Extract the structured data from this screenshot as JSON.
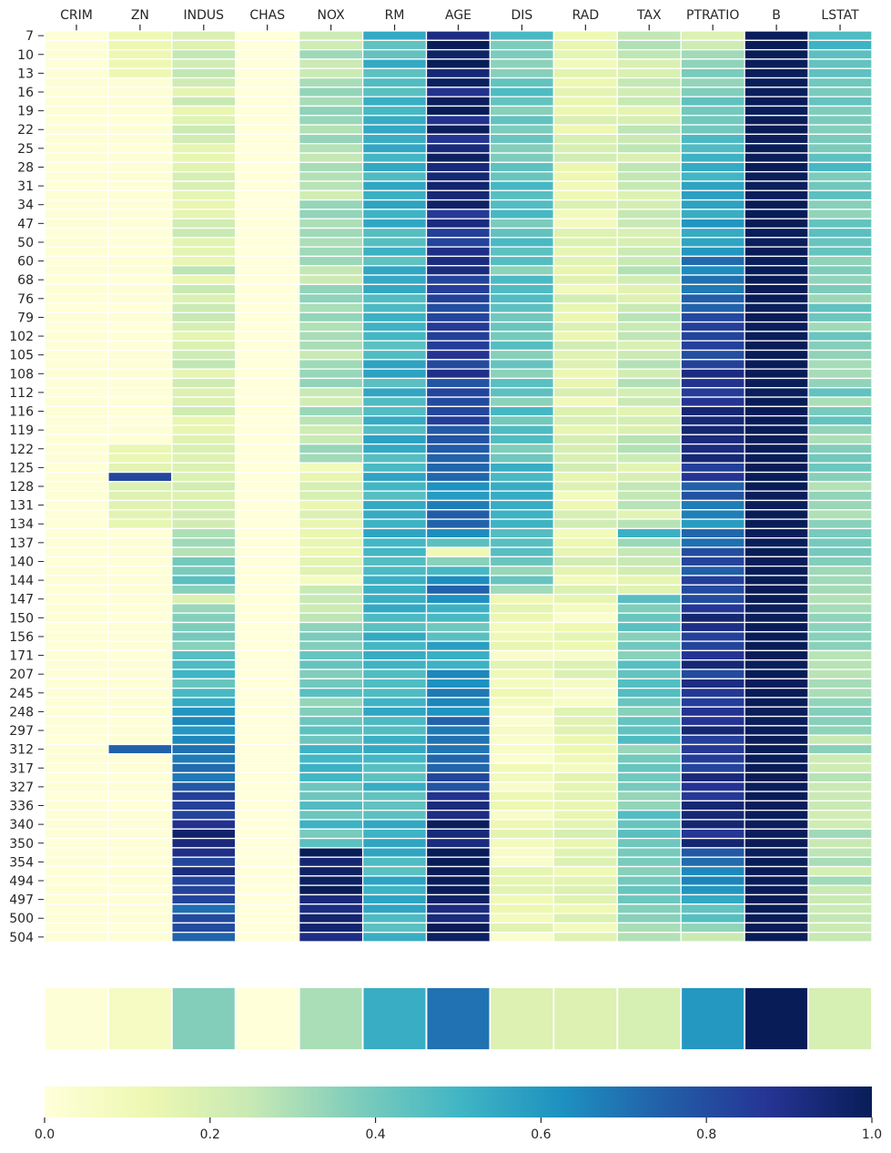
{
  "chart_data": {
    "type": "heatmap",
    "title": "",
    "columns": [
      "CRIM",
      "ZN",
      "INDUS",
      "CHAS",
      "NOX",
      "RM",
      "AGE",
      "DIS",
      "RAD",
      "TAX",
      "PTRATIO",
      "B",
      "LSTAT"
    ],
    "row_tick_labels": [
      "7",
      "10",
      "13",
      "16",
      "19",
      "22",
      "25",
      "28",
      "31",
      "34",
      "47",
      "50",
      "60",
      "68",
      "76",
      "79",
      "102",
      "105",
      "108",
      "112",
      "116",
      "119",
      "122",
      "125",
      "128",
      "131",
      "134",
      "137",
      "140",
      "144",
      "147",
      "150",
      "156",
      "171",
      "207",
      "245",
      "248",
      "297",
      "312",
      "317",
      "327",
      "336",
      "340",
      "350",
      "354",
      "494",
      "497",
      "500",
      "504"
    ],
    "row_count": 97,
    "column_profiles": [
      {
        "name": "CRIM",
        "anchors": [
          [
            0,
            0.01
          ],
          [
            96,
            0.01
          ]
        ]
      },
      {
        "name": "ZN",
        "anchors": [
          [
            0,
            0.12
          ],
          [
            4,
            0.12
          ],
          [
            5,
            0.01
          ],
          [
            43,
            0.01
          ],
          [
            44,
            0.13
          ],
          [
            46,
            0.15
          ],
          [
            47,
            0.82
          ],
          [
            48,
            0.18
          ],
          [
            52,
            0.15
          ],
          [
            53,
            0.01
          ],
          [
            69,
            0.01
          ],
          [
            70,
            0.01
          ],
          [
            72,
            0.01
          ],
          [
            73,
            0.01
          ],
          [
            75,
            0.01
          ],
          [
            76,
            0.75
          ],
          [
            77,
            0.01
          ],
          [
            88,
            0.01
          ],
          [
            89,
            0.01
          ],
          [
            90,
            0.01
          ],
          [
            91,
            0.01
          ],
          [
            92,
            0.01
          ],
          [
            93,
            0.01
          ],
          [
            95,
            0.01
          ],
          [
            96,
            0.01
          ]
        ]
      },
      {
        "name": "INDUS",
        "anchors": [
          [
            0,
            0.2
          ],
          [
            45,
            0.2
          ],
          [
            52,
            0.2
          ],
          [
            56,
            0.38
          ],
          [
            59,
            0.38
          ],
          [
            60,
            0.25
          ],
          [
            86,
            0.93
          ],
          [
            94,
            0.75
          ],
          [
            96,
            0.72
          ]
        ]
      },
      {
        "name": "CHAS",
        "anchors": [
          [
            0,
            0.0
          ],
          [
            96,
            0.0
          ]
        ]
      },
      {
        "name": "NOX",
        "anchors": [
          [
            0,
            0.28
          ],
          [
            45,
            0.28
          ],
          [
            46,
            0.15
          ],
          [
            55,
            0.15
          ],
          [
            56,
            0.14
          ],
          [
            58,
            0.14
          ],
          [
            59,
            0.28
          ],
          [
            75,
            0.45
          ],
          [
            86,
            0.45
          ],
          [
            87,
            1.0
          ],
          [
            96,
            0.95
          ]
        ]
      },
      {
        "name": "RM",
        "anchors": [
          [
            0,
            0.5
          ],
          [
            96,
            0.5
          ]
        ]
      },
      {
        "name": "AGE",
        "anchors": [
          [
            0,
            0.97
          ],
          [
            46,
            0.8
          ],
          [
            49,
            0.55
          ],
          [
            52,
            0.8
          ],
          [
            55,
            0.18
          ],
          [
            59,
            0.75
          ],
          [
            62,
            0.45
          ],
          [
            86,
            0.98
          ],
          [
            96,
            0.98
          ]
        ]
      },
      {
        "name": "DIS",
        "anchors": [
          [
            0,
            0.42
          ],
          [
            45,
            0.42
          ],
          [
            46,
            0.5
          ],
          [
            55,
            0.45
          ],
          [
            59,
            0.35
          ],
          [
            60,
            0.1
          ],
          [
            86,
            0.1
          ],
          [
            96,
            0.1
          ]
        ]
      },
      {
        "name": "RAD",
        "anchors": [
          [
            0,
            0.15
          ],
          [
            55,
            0.15
          ],
          [
            59,
            0.15
          ],
          [
            60,
            0.1
          ],
          [
            86,
            0.15
          ],
          [
            96,
            0.15
          ]
        ]
      },
      {
        "name": "TAX",
        "anchors": [
          [
            0,
            0.22
          ],
          [
            45,
            0.22
          ],
          [
            52,
            0.22
          ],
          [
            53,
            0.55
          ],
          [
            55,
            0.2
          ],
          [
            59,
            0.2
          ],
          [
            60,
            0.4
          ],
          [
            86,
            0.4
          ],
          [
            96,
            0.35
          ]
        ]
      },
      {
        "name": "PTRATIO",
        "anchors": [
          [
            0,
            0.25
          ],
          [
            37,
            0.88
          ],
          [
            46,
            0.88
          ],
          [
            52,
            0.62
          ],
          [
            55,
            0.85
          ],
          [
            59,
            0.75
          ],
          [
            62,
            0.88
          ],
          [
            86,
            0.88
          ],
          [
            96,
            0.3
          ]
        ]
      },
      {
        "name": "B",
        "anchors": [
          [
            0,
            1.0
          ],
          [
            96,
            1.0
          ]
        ]
      },
      {
        "name": "LSTAT",
        "anchors": [
          [
            0,
            0.45
          ],
          [
            96,
            0.25
          ]
        ]
      }
    ],
    "summary_row": {
      "label": "",
      "values": [
        0.01,
        0.07,
        0.37,
        0.0,
        0.3,
        0.53,
        0.7,
        0.18,
        0.18,
        0.2,
        0.6,
        1.0,
        0.2
      ]
    },
    "colormap": "YlGnBu",
    "colormap_stops": [
      "#ffffd9",
      "#edf8b1",
      "#c7e9b4",
      "#7fcdbb",
      "#41b6c4",
      "#1d91c0",
      "#225ea8",
      "#253494",
      "#081d58"
    ],
    "colorbar": {
      "orientation": "horizontal",
      "range": [
        0.0,
        1.0
      ],
      "tick_values": [
        0.0,
        0.2,
        0.4,
        0.6,
        0.8,
        1.0
      ],
      "tick_labels": [
        "0.0",
        "0.2",
        "0.4",
        "0.6",
        "0.8",
        "1.0"
      ]
    },
    "xlabel": "",
    "ylabel": "",
    "grid": false,
    "legend": "colorbar at bottom"
  }
}
